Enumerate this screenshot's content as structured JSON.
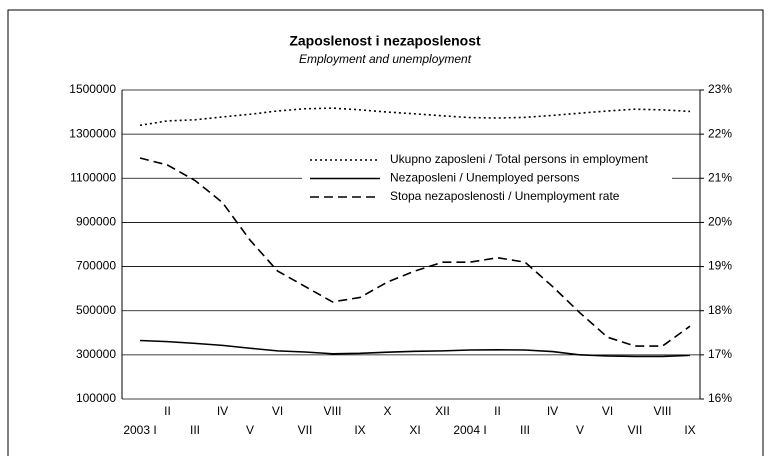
{
  "chart_data": {
    "type": "line",
    "title": "Zaposlenost i nezaposlenost",
    "subtitle": "Employment and unemployment",
    "categories": [
      "2003 I",
      "II",
      "III",
      "IV",
      "V",
      "VI",
      "VII",
      "VIII",
      "IX",
      "X",
      "XI",
      "XII",
      "2004 I",
      "II",
      "III",
      "IV",
      "V",
      "VI",
      "VII",
      "VIII",
      "IX"
    ],
    "ylim": [
      100000,
      1500000
    ],
    "yticks": [
      100000,
      300000,
      500000,
      700000,
      900000,
      1100000,
      1300000,
      1500000
    ],
    "y2lim": [
      16,
      23
    ],
    "y2ticks": [
      {
        "value": 16,
        "label": "16%"
      },
      {
        "value": 17,
        "label": "17%"
      },
      {
        "value": 18,
        "label": "18%"
      },
      {
        "value": 19,
        "label": "19%"
      },
      {
        "value": 20,
        "label": "20%"
      },
      {
        "value": 21,
        "label": "21%"
      },
      {
        "value": 22,
        "label": "22%"
      },
      {
        "value": 23,
        "label": "23%"
      }
    ],
    "grid": true,
    "legend": "top-right",
    "series": [
      {
        "name": "Ukupno zaposleni / Total persons in employment",
        "color": "#000000",
        "dash": "dotted",
        "values": [
          1340000,
          1360000,
          1365000,
          1378000,
          1390000,
          1405000,
          1415000,
          1418000,
          1410000,
          1400000,
          1392000,
          1383000,
          1375000,
          1373000,
          1376000,
          1385000,
          1395000,
          1405000,
          1413000,
          1410000,
          1403000
        ]
      },
      {
        "name": "Nezaposleni / Unemployed persons",
        "color": "#000000",
        "dash": "solid",
        "values": [
          365000,
          360000,
          352000,
          343000,
          330000,
          318000,
          313000,
          305000,
          307000,
          312000,
          316000,
          318000,
          322000,
          323000,
          322000,
          315000,
          300000,
          295000,
          293000,
          293000,
          298000
        ]
      },
      {
        "name": "Stopa nezaposlenosti / Unemployment rate",
        "color": "#000000",
        "dash": "dashed",
        "axis": "y2",
        "values": [
          21.46,
          21.3,
          20.95,
          20.45,
          19.6,
          18.9,
          18.55,
          18.2,
          18.3,
          18.65,
          18.9,
          19.1,
          19.1,
          19.2,
          19.1,
          18.55,
          17.95,
          17.4,
          17.2,
          17.2,
          17.65
        ]
      }
    ]
  }
}
